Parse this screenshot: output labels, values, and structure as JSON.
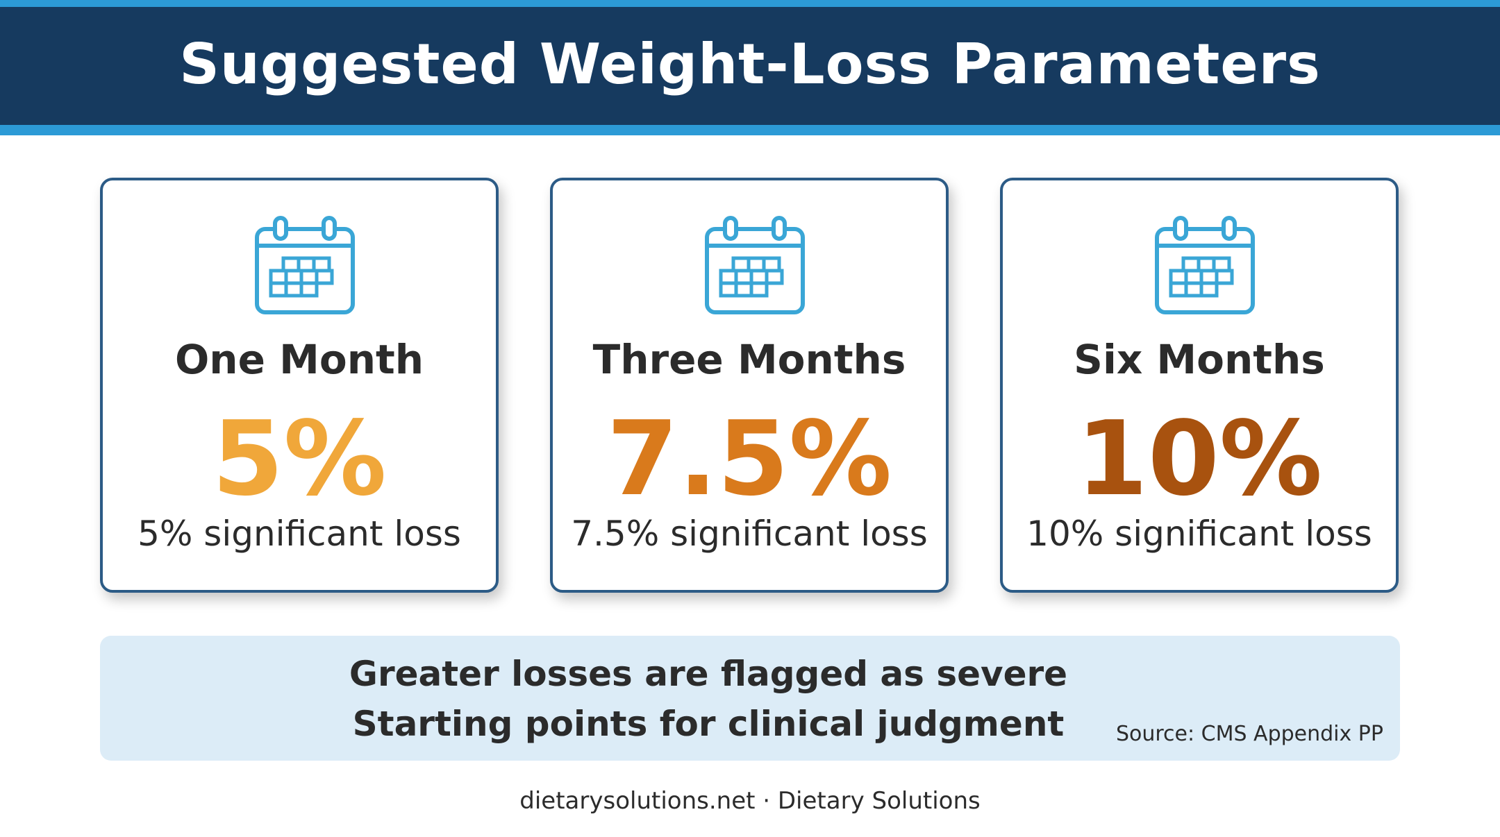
{
  "header": {
    "title": "Suggested Weight-Loss Parameters"
  },
  "cards": [
    {
      "period": "One Month",
      "value": "5%",
      "description": "5% significant loss",
      "value_color": "#f0a73a",
      "icon": "calendar-icon"
    },
    {
      "period": "Three Months",
      "value": "7.5%",
      "description": "7.5% significant loss",
      "value_color": "#d97a1c",
      "icon": "calendar-icon"
    },
    {
      "period": "Six Months",
      "value": "10%",
      "description": "10% significant loss",
      "value_color": "#a8520f",
      "icon": "calendar-icon"
    }
  ],
  "notice": {
    "line1": "Greater losses are flagged as severe",
    "line2": "Starting points for clinical judgment",
    "source": "Source: CMS Appendix PP"
  },
  "footer": {
    "text": "dietarysolutions.net · Dietary Solutions"
  },
  "colors": {
    "header_bg": "#163a5f",
    "header_accent": "#2c9ad6",
    "card_border": "#2c5b86",
    "icon_color": "#3aa6d6",
    "notice_bg": "#dcecf7"
  }
}
